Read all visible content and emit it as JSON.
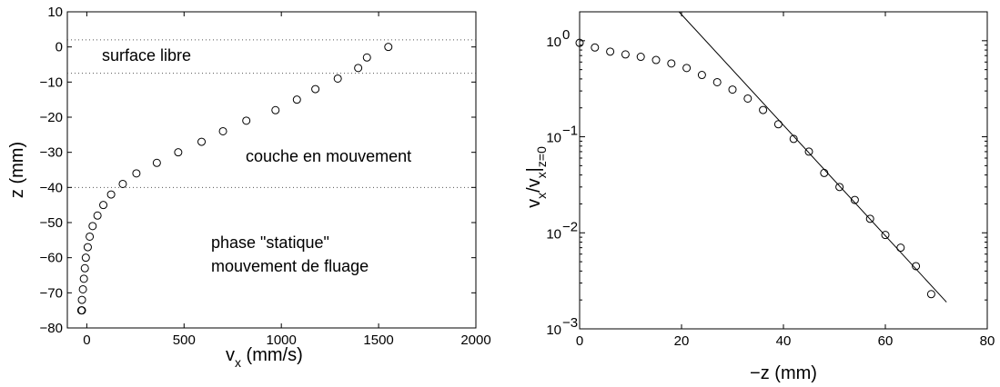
{
  "chart_data": [
    {
      "type": "scatter",
      "xlabel_main": "v",
      "xlabel_sub": "x",
      "xlabel_rest": " (mm/s)",
      "ylabel": "z (mm)",
      "xlim": [
        -100,
        2000
      ],
      "ylim": [
        -80,
        10
      ],
      "xticks": [
        0,
        500,
        1000,
        1500,
        2000
      ],
      "xtick_labels": [
        "0",
        "500",
        "1000",
        "1500",
        "2000"
      ],
      "yticks": [
        -80,
        -70,
        -60,
        -50,
        -40,
        -30,
        -20,
        -10,
        0,
        10
      ],
      "ytick_labels": [
        "−80",
        "−70",
        "−60",
        "−50",
        "−40",
        "−30",
        "−20",
        "−10",
        "0",
        "10"
      ],
      "x": [
        1550,
        1440,
        1395,
        1290,
        1175,
        1080,
        970,
        820,
        700,
        590,
        470,
        360,
        255,
        185,
        125,
        85,
        55,
        30,
        15,
        5,
        -5,
        -10,
        -15,
        -20,
        -25,
        -25,
        -28
      ],
      "y": [
        0,
        -3,
        -6,
        -9,
        -12,
        -15,
        -18,
        -21,
        -24,
        -27,
        -30,
        -33,
        -36,
        -39,
        -42,
        -45,
        -48,
        -51,
        -54,
        -57,
        -60,
        -63,
        -66,
        -69,
        -72,
        -75,
        -75
      ],
      "hlines": [
        2,
        -7.5,
        -40
      ],
      "annotations": [
        "surface libre",
        "couche en mouvement",
        "phase \"statique\"",
        "mouvement de fluage"
      ]
    },
    {
      "type": "scatter",
      "yscale": "log",
      "xlabel": "−z (mm)",
      "ylabel_parts": [
        "v",
        "x",
        "/v",
        "x",
        "|",
        "z=0"
      ],
      "xlim": [
        0,
        80
      ],
      "ylim": [
        0.001,
        2
      ],
      "xticks": [
        0,
        20,
        40,
        60,
        80
      ],
      "xtick_labels": [
        "0",
        "20",
        "40",
        "60",
        "80"
      ],
      "ytick_base": "10",
      "ytick_exponents": [
        "−3",
        "−2",
        "−1",
        "0"
      ],
      "x": [
        0,
        3,
        6,
        9,
        12,
        15,
        18,
        21,
        24,
        27,
        30,
        33,
        36,
        39,
        42,
        45,
        48,
        51,
        54,
        57,
        60,
        63,
        66,
        69
      ],
      "y": [
        0.95,
        0.85,
        0.77,
        0.72,
        0.68,
        0.63,
        0.58,
        0.52,
        0.44,
        0.37,
        0.31,
        0.25,
        0.19,
        0.135,
        0.095,
        0.07,
        0.042,
        0.03,
        0.022,
        0.014,
        0.0095,
        0.007,
        0.0045,
        0.0023
      ],
      "fit_line": {
        "x": [
          19.5,
          72
        ],
        "y": [
          2,
          0.0019
        ]
      }
    }
  ]
}
